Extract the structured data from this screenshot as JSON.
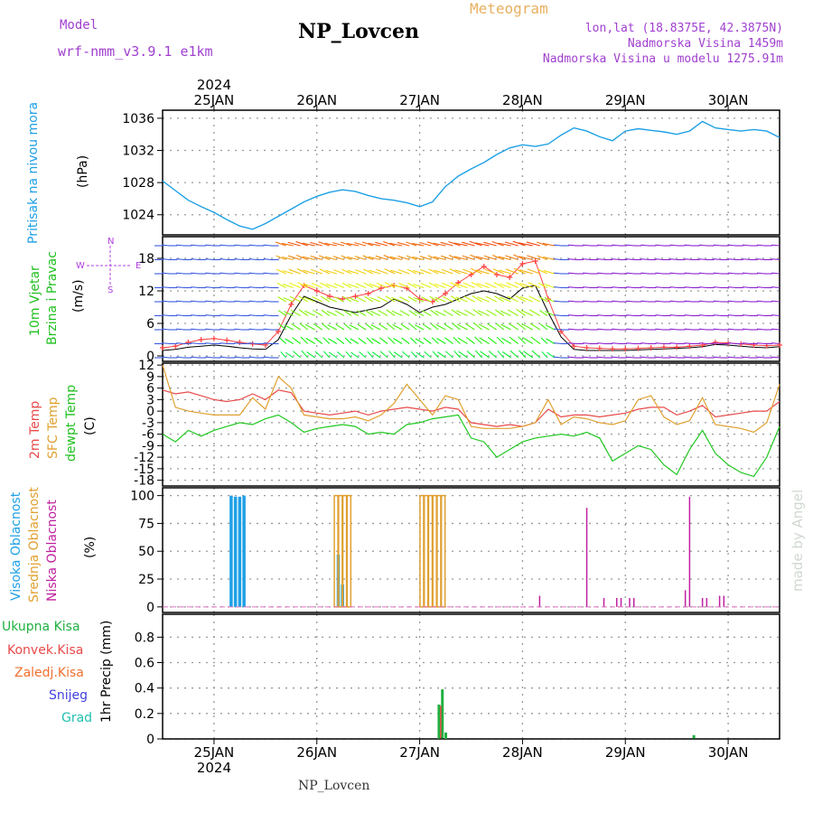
{
  "header": {
    "model_label": "Model",
    "model_name": "wrf-nmm_v3.9.1 e1km",
    "title": "NP_Lovcen",
    "meteogram_label": "Meteogram",
    "coords": "lon,lat (18.8375E, 42.3875N)",
    "elevation": "Nadmorska Visina 1459m",
    "model_elevation": "Nadmorska Visina u modelu 1275.91m",
    "footer_title": "NP_Lovcen",
    "watermark": "made by Angel"
  },
  "colors": {
    "pressure": "#1ea0e6",
    "wind_speed": "#000000",
    "gust": "#ff4040",
    "t2m": "#e84a4a",
    "sfc": "#e0a030",
    "dewpt": "#20c820",
    "high_cloud": "#1ea0e6",
    "mid_cloud": "#e0a030",
    "low_cloud": "#c020a0",
    "total_precip": "#20b040",
    "conv_precip": "#e84a4a"
  },
  "chart_data": [
    {
      "type": "line",
      "panel": "pressure",
      "ylabel_left": "Pritisak na nivou mora",
      "ylabel_unit": "(hPa)",
      "ylim": [
        1021.5,
        1037
      ],
      "yticks": [
        1024,
        1028,
        1032,
        1036
      ],
      "x_hours": [
        0,
        3,
        6,
        9,
        12,
        15,
        18,
        21,
        24,
        27,
        30,
        33,
        36,
        39,
        42,
        45,
        48,
        51,
        54,
        57,
        60,
        63,
        66,
        69,
        72,
        75,
        78,
        81,
        84,
        87,
        90,
        93,
        96,
        99,
        102,
        105,
        108,
        111,
        114,
        117,
        120,
        123,
        126,
        129,
        132,
        135,
        138,
        141,
        144
      ],
      "series": [
        {
          "values": [
            1028.2,
            1027.0,
            1025.8,
            1025.0,
            1024.3,
            1023.4,
            1022.6,
            1022.2,
            1022.9,
            1023.8,
            1024.7,
            1025.6,
            1026.3,
            1026.8,
            1027.1,
            1026.9,
            1026.4,
            1026.0,
            1025.8,
            1025.5,
            1025.0,
            1025.6,
            1027.5,
            1028.8,
            1029.7,
            1030.5,
            1031.5,
            1032.3,
            1032.7,
            1032.5,
            1032.8,
            1033.9,
            1034.8,
            1034.4,
            1033.7,
            1033.2,
            1034.4,
            1034.7,
            1034.5,
            1034.3,
            1034.0,
            1034.4,
            1035.6,
            1034.8,
            1034.6,
            1034.4,
            1034.6,
            1034.4,
            1033.6
          ]
        }
      ]
    },
    {
      "type": "line",
      "panel": "wind",
      "ylabel_left": "10m Vjetar",
      "ylabel_left2": "Brzina i Pravac",
      "ylabel_unit": "(m/s)",
      "compass": [
        "N",
        "W",
        "E",
        "S"
      ],
      "ylim": [
        -1,
        22
      ],
      "yticks": [
        0,
        6,
        12,
        18
      ],
      "x_hours": [
        0,
        3,
        6,
        9,
        12,
        15,
        18,
        21,
        24,
        27,
        30,
        33,
        36,
        39,
        42,
        45,
        48,
        51,
        54,
        57,
        60,
        63,
        66,
        69,
        72,
        75,
        78,
        81,
        84,
        87,
        90,
        93,
        96,
        99,
        102,
        105,
        108,
        111,
        114,
        117,
        120,
        123,
        126,
        129,
        132,
        135,
        138,
        141,
        144
      ],
      "series": [
        {
          "name": "speed",
          "values": [
            1.0,
            1.2,
            1.6,
            1.8,
            2.0,
            1.8,
            1.5,
            1.3,
            1.2,
            3.0,
            7.5,
            11.0,
            10.0,
            9.0,
            8.5,
            8.0,
            8.5,
            9.0,
            10.5,
            9.5,
            8.0,
            9.0,
            9.5,
            10.5,
            11.5,
            12.0,
            11.5,
            10.5,
            12.5,
            13.0,
            8.0,
            3.5,
            1.2,
            1.0,
            1.0,
            1.0,
            1.0,
            1.1,
            1.2,
            1.3,
            1.4,
            1.5,
            1.7,
            2.1,
            2.0,
            1.8,
            1.6,
            1.5,
            1.7
          ]
        },
        {
          "name": "gust",
          "values": [
            1.5,
            1.8,
            2.5,
            3.0,
            3.2,
            2.9,
            2.5,
            2.2,
            2.0,
            4.5,
            9.5,
            13.0,
            12.0,
            11.0,
            10.5,
            11.0,
            11.5,
            12.5,
            13.0,
            12.5,
            10.5,
            10.0,
            11.5,
            13.5,
            15.0,
            16.5,
            15.0,
            14.5,
            17.0,
            17.5,
            10.5,
            4.5,
            1.8,
            1.5,
            1.4,
            1.3,
            1.3,
            1.4,
            1.5,
            1.6,
            1.6,
            1.8,
            2.0,
            2.5,
            2.4,
            2.2,
            2.0,
            1.9,
            2.0
          ]
        }
      ]
    },
    {
      "type": "line",
      "panel": "temperature",
      "ylabel_left": "2m Temp",
      "ylabel_left2": "SFC Temp",
      "ylabel_left3": "dewpt Temp",
      "ylabel_unit": "(C)",
      "ylim": [
        -19.5,
        12.5
      ],
      "yticks": [
        12,
        9,
        6,
        3,
        0,
        -3,
        -6,
        -9,
        -12,
        -15,
        -18
      ],
      "x_hours": [
        0,
        3,
        6,
        9,
        12,
        15,
        18,
        21,
        24,
        27,
        30,
        33,
        36,
        39,
        42,
        45,
        48,
        51,
        54,
        57,
        60,
        63,
        66,
        69,
        72,
        75,
        78,
        81,
        84,
        87,
        90,
        93,
        96,
        99,
        102,
        105,
        108,
        111,
        114,
        117,
        120,
        123,
        126,
        129,
        132,
        135,
        138,
        141,
        144
      ],
      "series": [
        {
          "name": "2m",
          "values": [
            5.5,
            4.5,
            5.0,
            4.0,
            3.0,
            2.5,
            3.0,
            4.5,
            3.0,
            5.5,
            4.8,
            0.0,
            -0.5,
            -1.0,
            -0.5,
            0.0,
            -1.0,
            0.0,
            0.5,
            1.0,
            0.5,
            0.0,
            1.0,
            0.5,
            -3.0,
            -3.5,
            -4.0,
            -3.5,
            -4.0,
            -3.0,
            0.5,
            -1.5,
            -1.0,
            -1.0,
            -1.5,
            -1.0,
            -0.5,
            0.5,
            1.0,
            1.0,
            -1.0,
            0.0,
            1.5,
            -1.5,
            -1.0,
            -0.5,
            0.0,
            0.0,
            2.5
          ]
        },
        {
          "name": "sfc",
          "values": [
            12.0,
            1.0,
            0.0,
            -0.5,
            -1.0,
            -1.0,
            -1.0,
            3.5,
            0.5,
            9.0,
            6.0,
            -1.0,
            -1.5,
            -2.0,
            -2.0,
            -1.5,
            -2.5,
            -1.0,
            2.0,
            7.0,
            3.0,
            -1.0,
            4.0,
            3.0,
            -4.0,
            -4.5,
            -4.5,
            -4.5,
            -4.0,
            -3.0,
            3.0,
            -3.5,
            -1.5,
            -2.0,
            -3.0,
            -3.5,
            -2.5,
            3.0,
            4.0,
            -1.5,
            -3.5,
            -2.5,
            3.5,
            -3.5,
            -4.0,
            -4.5,
            -5.5,
            -3.0,
            7.0
          ]
        },
        {
          "name": "dewpt",
          "values": [
            -6.0,
            -8.0,
            -5.0,
            -6.5,
            -5.0,
            -4.0,
            -3.0,
            -3.5,
            -2.0,
            -1.0,
            -3.0,
            -5.5,
            -4.5,
            -4.0,
            -3.5,
            -4.0,
            -6.0,
            -5.5,
            -6.0,
            -3.5,
            -3.0,
            -2.0,
            -1.5,
            -1.0,
            -7.0,
            -8.0,
            -12.0,
            -10.0,
            -8.0,
            -7.0,
            -6.5,
            -6.0,
            -6.5,
            -5.5,
            -7.0,
            -13.0,
            -11.0,
            -9.0,
            -10.0,
            -14.0,
            -16.5,
            -10.0,
            -5.0,
            -11.0,
            -14.0,
            -16.0,
            -17.0,
            -12.0,
            -4.0
          ]
        }
      ]
    },
    {
      "type": "bar",
      "panel": "clouds",
      "ylabel_left": "Visoka Oblacnost",
      "ylabel_left2": "Srednja Oblacnost",
      "ylabel_left3": "Niska Oblacnost",
      "ylabel_unit": "(%)",
      "ylim": [
        -5,
        107
      ],
      "yticks": [
        0,
        25,
        50,
        75,
        100
      ],
      "series": [
        {
          "name": "high",
          "x_hours": [
            16.0,
            17.0,
            18.0,
            19.0,
            41.0,
            42.0
          ],
          "values": [
            100,
            99,
            99,
            100,
            47,
            20
          ]
        },
        {
          "name": "mid",
          "x_hours": [
            40.5,
            41.5,
            42.5,
            43.5,
            60.5,
            61.5,
            62.5,
            63.5,
            64.5,
            65.5
          ],
          "values": [
            100,
            100,
            100,
            100,
            100,
            100,
            100,
            100,
            100,
            100
          ]
        },
        {
          "name": "low",
          "x_hours": [
            88.0,
            99.0,
            103.0,
            106.0,
            107.0,
            109.0,
            110.0,
            122.0,
            123.0,
            126.0,
            127.0,
            130.0,
            131.0
          ],
          "values": [
            10,
            89,
            8,
            8,
            8,
            8,
            8,
            15,
            99,
            8,
            8,
            10,
            10
          ]
        }
      ]
    },
    {
      "type": "bar",
      "panel": "precip",
      "ylabel_left": "Ukupna Kisa",
      "ylabel_left2": "Konvek.Kisa",
      "ylabel_left3": "Zaledj.Kisa",
      "ylabel_left4": "Snijeg",
      "ylabel_left5": "Grad",
      "ylabel_unit": "1hr Precip (mm)",
      "ylim": [
        0,
        0.98
      ],
      "yticks": [
        0,
        0.2,
        0.4,
        0.6,
        0.8
      ],
      "series": [
        {
          "name": "total",
          "x_hours": [
            64.5,
            65.3,
            66.1,
            124.0
          ],
          "values": [
            0.27,
            0.39,
            0.05,
            0.03
          ]
        },
        {
          "name": "conv",
          "x_hours": [
            64.9
          ],
          "values": [
            0.26
          ]
        }
      ]
    }
  ],
  "x_axis": {
    "year": "2024",
    "ticks": [
      {
        "label": "25JAN",
        "hour": 12
      },
      {
        "label": "26JAN",
        "hour": 36
      },
      {
        "label": "27JAN",
        "hour": 60
      },
      {
        "label": "28JAN",
        "hour": 84
      },
      {
        "label": "29JAN",
        "hour": 108
      },
      {
        "label": "30JAN",
        "hour": 132
      }
    ],
    "range_hours": [
      0,
      144
    ]
  }
}
